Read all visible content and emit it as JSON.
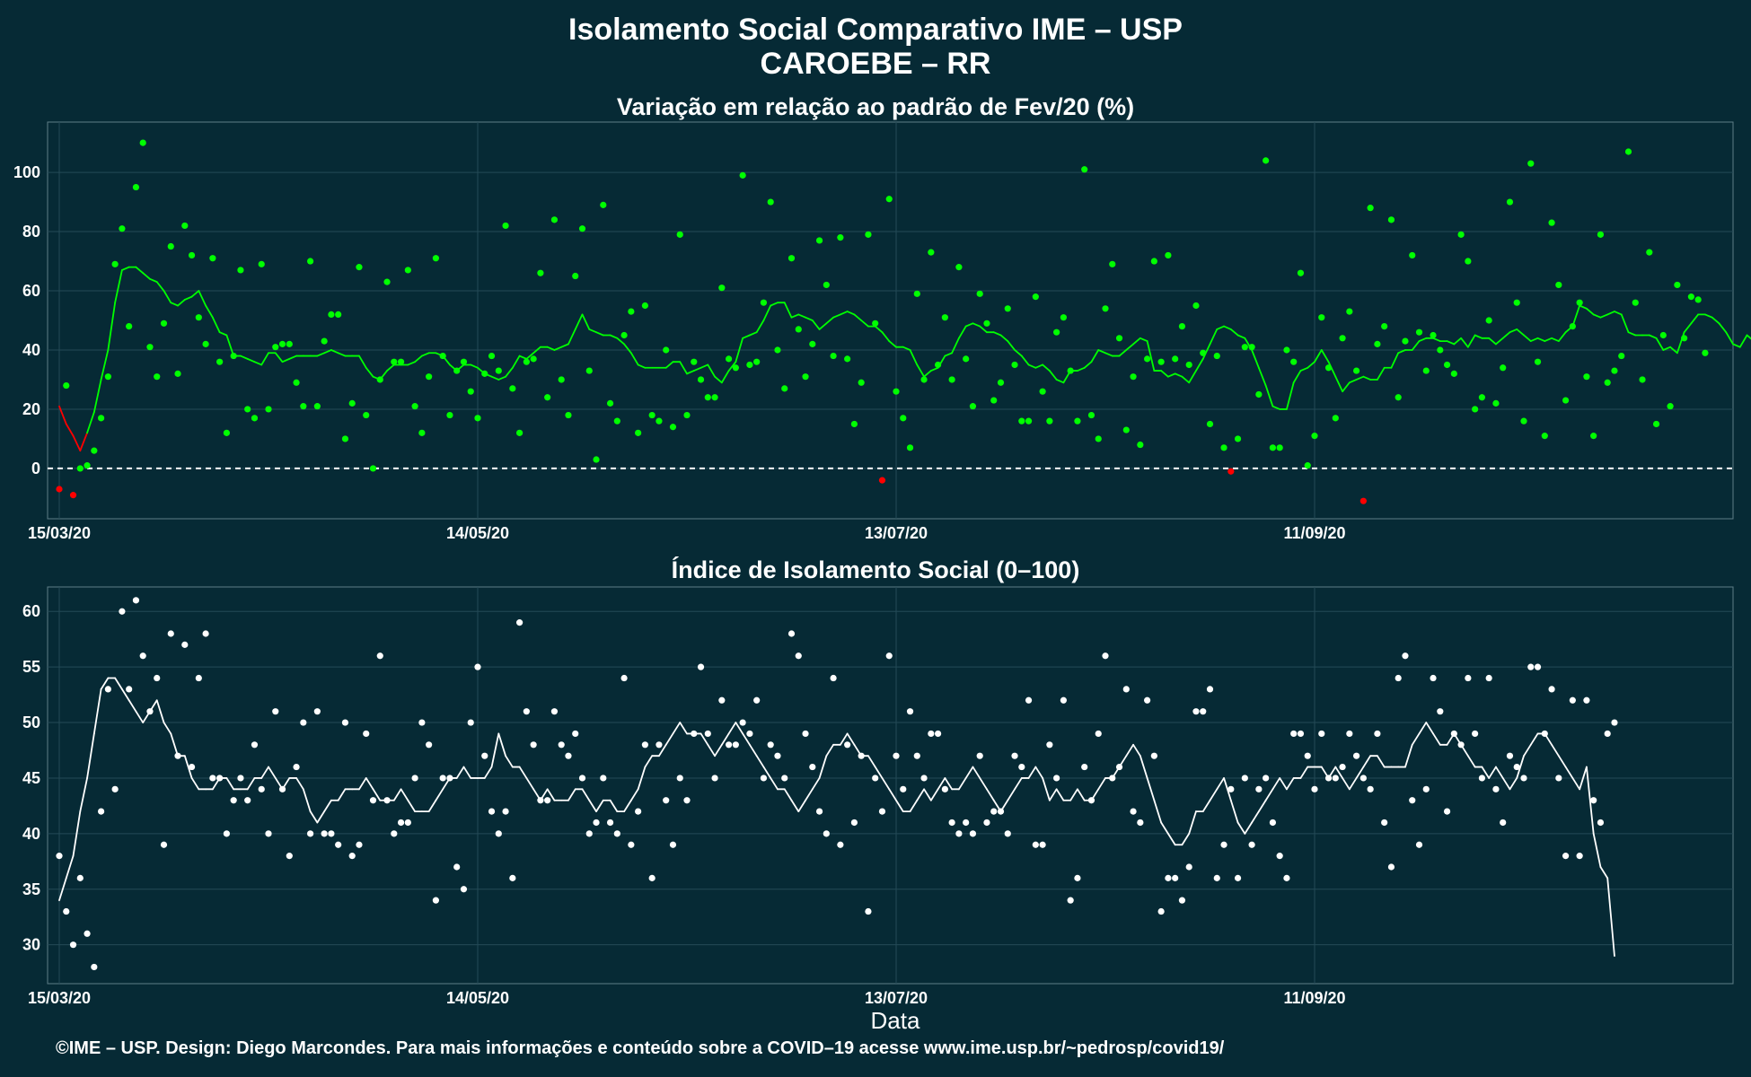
{
  "title_line1": "Isolamento Social Comparativo IME – USP",
  "title_line2": "CAROEBE – RR",
  "footer": "©IME – USP. Design: Diego Marcondes. Para mais informações e conteúdo sobre a COVID–19 acesse www.ime.usp.br/~pedrosp/covid19/",
  "x_axis_label": "Data",
  "colors": {
    "background": "#062a35",
    "positive": "#00ff00",
    "negative": "#ff0000",
    "index": "#ffffff",
    "grid": "#244a57"
  },
  "chart_data": [
    {
      "type": "scatter",
      "title": "Variação em relação ao padrão de Fev/20 (%)",
      "xlabel": "Data",
      "ylabel": "",
      "x_start": "2020-03-15",
      "x_ticks": [
        "15/03/20",
        "14/05/20",
        "13/07/20",
        "11/09/20"
      ],
      "y_ticks": [
        0,
        20,
        40,
        60,
        80,
        100
      ],
      "ylim": [
        -17,
        117
      ],
      "reference_line": 0,
      "series": [
        {
          "values": [
            -7,
            28,
            -9,
            0,
            1,
            6,
            17,
            31,
            69,
            81,
            48,
            95,
            110,
            41,
            31,
            49,
            75,
            32,
            82,
            72,
            51,
            42,
            71,
            36,
            12,
            38,
            67,
            20,
            17,
            69,
            20,
            41,
            42,
            42,
            29,
            21,
            70,
            21,
            43,
            52,
            52,
            10,
            22,
            68,
            18,
            0,
            30,
            63,
            36,
            36,
            67,
            21,
            12,
            31,
            71,
            38,
            18,
            33,
            36,
            26,
            17,
            32,
            38,
            33,
            82,
            27,
            12,
            36,
            37,
            66,
            24,
            84,
            30,
            18,
            65,
            81,
            33,
            3,
            89,
            22,
            16,
            45,
            53,
            12,
            55,
            18,
            16,
            40,
            14,
            79,
            18,
            36,
            30,
            24,
            24,
            61,
            37,
            34,
            99,
            35,
            36,
            56,
            90,
            40,
            27,
            71,
            47,
            31,
            42,
            77,
            62,
            38,
            78,
            37,
            15,
            29,
            79,
            49,
            -4,
            91,
            26,
            17,
            7,
            59,
            30,
            73,
            35,
            51,
            30,
            68,
            37,
            21,
            59,
            49,
            23,
            29,
            54,
            35,
            16,
            16,
            58,
            26,
            16,
            46,
            51,
            33,
            16,
            101,
            18,
            10,
            54,
            69,
            44,
            13,
            31,
            8,
            37,
            70,
            36,
            72,
            37,
            48,
            35,
            55,
            39,
            15,
            38,
            7,
            -1,
            10,
            41,
            41,
            25,
            104,
            7,
            7,
            40,
            36,
            66,
            1,
            11,
            51,
            34,
            17,
            44,
            53,
            33,
            -11,
            88,
            42,
            48,
            84,
            24,
            43,
            72,
            46,
            33,
            45,
            40,
            35,
            32,
            79,
            70,
            20,
            24,
            50,
            22,
            34,
            90,
            56,
            16,
            103,
            36,
            11,
            83,
            62,
            23,
            48,
            56,
            31,
            11,
            79,
            29,
            33,
            38,
            107,
            56,
            30,
            73,
            15,
            45,
            21,
            62,
            44,
            58,
            57,
            39
          ]
        },
        {
          "values": [
            21,
            15,
            11,
            6,
            12,
            19,
            30,
            40,
            56,
            67,
            68,
            68,
            66,
            64,
            63,
            60,
            56,
            55,
            57,
            58,
            60,
            55,
            51,
            46,
            45,
            38,
            38,
            37,
            36,
            35,
            39,
            39,
            36,
            37,
            38,
            38,
            38,
            38,
            39,
            40,
            39,
            38,
            38,
            38,
            34,
            31,
            30,
            33,
            35,
            35,
            35,
            36,
            38,
            39,
            39,
            38,
            35,
            33,
            35,
            35,
            34,
            32,
            31,
            30,
            31,
            34,
            38,
            37,
            39,
            41,
            41,
            40,
            41,
            42,
            47,
            52,
            47,
            46,
            45,
            45,
            44,
            42,
            39,
            35,
            34,
            34,
            34,
            34,
            36,
            36,
            32,
            33,
            34,
            35,
            31,
            29,
            33,
            36,
            44,
            45,
            46,
            50,
            55,
            56,
            56,
            51,
            52,
            51,
            50,
            47,
            49,
            51,
            52,
            53,
            52,
            50,
            48,
            48,
            46,
            43,
            41,
            41,
            40,
            35,
            31,
            33,
            34,
            38,
            39,
            44,
            48,
            49,
            48,
            46,
            46,
            45,
            43,
            40,
            38,
            35,
            34,
            35,
            33,
            30,
            29,
            33,
            33,
            34,
            36,
            40,
            39,
            38,
            38,
            40,
            42,
            44,
            43,
            33,
            33,
            31,
            32,
            31,
            29,
            33,
            37,
            42,
            47,
            48,
            47,
            45,
            44,
            40,
            34,
            28,
            21,
            20,
            20,
            29,
            33,
            34,
            36,
            40,
            36,
            31,
            26,
            29,
            30,
            31,
            30,
            30,
            34,
            34,
            39,
            40,
            40,
            43,
            44,
            44,
            43,
            43,
            42,
            44,
            41,
            45,
            44,
            44,
            42,
            44,
            46,
            47,
            45,
            43,
            44,
            43,
            44,
            43,
            46,
            48,
            55,
            54,
            52,
            51,
            52,
            53,
            52,
            46,
            45,
            45,
            45,
            44,
            40,
            41,
            39,
            46,
            49,
            52,
            52,
            51,
            49,
            46,
            42,
            41,
            45,
            43,
            46
          ]
        }
      ]
    },
    {
      "type": "scatter",
      "title": "Índice de Isolamento Social (0–100)",
      "xlabel": "Data",
      "ylabel": "",
      "x_start": "2020-03-15",
      "x_ticks": [
        "15/03/20",
        "14/05/20",
        "13/07/20",
        "11/09/20"
      ],
      "y_ticks": [
        30,
        35,
        40,
        45,
        50,
        55,
        60
      ],
      "ylim": [
        26.5,
        62.2
      ],
      "series": [
        {
          "values": [
            38,
            33,
            30,
            36,
            31,
            28,
            42,
            53,
            44,
            60,
            53,
            61,
            56,
            51,
            54,
            39,
            58,
            47,
            57,
            46,
            54,
            58,
            45,
            45,
            40,
            43,
            45,
            43,
            48,
            44,
            40,
            51,
            44,
            38,
            46,
            50,
            40,
            51,
            40,
            40,
            39,
            50,
            38,
            39,
            49,
            43,
            56,
            43,
            40,
            41,
            41,
            45,
            50,
            48,
            34,
            45,
            45,
            37,
            35,
            50,
            55,
            47,
            42,
            40,
            42,
            36,
            59,
            51,
            48,
            43,
            43,
            51,
            48,
            47,
            49,
            45,
            40,
            41,
            45,
            41,
            40,
            54,
            39,
            42,
            48,
            36,
            48,
            43,
            39,
            45,
            43,
            49,
            55,
            49,
            45,
            52,
            48,
            48,
            50,
            49,
            52,
            45,
            48,
            47,
            45,
            58,
            56,
            49,
            46,
            42,
            40,
            54,
            39,
            48,
            41,
            47,
            33,
            45,
            42,
            56,
            47,
            44,
            51,
            47,
            45,
            49,
            49,
            44,
            41,
            40,
            41,
            40,
            47,
            41,
            42,
            42,
            40,
            47,
            46,
            52,
            39,
            39,
            48,
            45,
            52,
            34,
            36,
            46,
            43,
            49,
            56,
            45,
            46,
            53,
            42,
            41,
            52,
            47,
            33,
            36,
            36,
            34,
            37,
            51,
            51,
            53,
            36,
            39,
            44,
            36,
            45,
            39,
            44,
            45,
            41,
            38,
            36,
            49,
            49,
            47,
            44,
            49,
            45,
            45,
            46,
            49,
            47,
            45,
            44,
            49,
            41,
            37,
            54,
            56,
            43,
            39,
            44,
            54,
            51,
            42,
            49,
            48,
            54,
            49,
            45,
            54,
            44,
            41,
            47,
            46,
            45,
            55,
            55,
            49,
            53,
            45,
            38,
            52,
            38,
            52,
            43,
            41,
            49,
            50
          ]
        },
        {
          "values": [
            34,
            36,
            38,
            42,
            45,
            49,
            53,
            54,
            54,
            53,
            52,
            51,
            50,
            51,
            52,
            50,
            49,
            47,
            47,
            45,
            44,
            44,
            44,
            45,
            45,
            44,
            44,
            44,
            45,
            45,
            46,
            45,
            44,
            45,
            45,
            44,
            42,
            41,
            42,
            43,
            43,
            44,
            44,
            44,
            45,
            44,
            43,
            43,
            43,
            44,
            43,
            42,
            42,
            42,
            43,
            44,
            45,
            45,
            46,
            45,
            45,
            45,
            46,
            49,
            47,
            46,
            46,
            45,
            44,
            43,
            44,
            43,
            43,
            43,
            44,
            44,
            43,
            42,
            43,
            43,
            42,
            42,
            43,
            44,
            46,
            47,
            47,
            48,
            49,
            50,
            49,
            49,
            49,
            48,
            47,
            48,
            49,
            50,
            49,
            48,
            47,
            46,
            45,
            44,
            44,
            43,
            42,
            43,
            44,
            45,
            47,
            48,
            48,
            49,
            48,
            47,
            47,
            46,
            45,
            44,
            43,
            42,
            42,
            43,
            44,
            43,
            44,
            45,
            44,
            44,
            45,
            46,
            45,
            44,
            43,
            42,
            43,
            44,
            45,
            45,
            46,
            45,
            43,
            44,
            43,
            43,
            44,
            43,
            43,
            44,
            45,
            45,
            46,
            47,
            48,
            47,
            45,
            43,
            41,
            40,
            39,
            39,
            40,
            42,
            42,
            43,
            44,
            45,
            43,
            41,
            40,
            41,
            42,
            43,
            44,
            45,
            44,
            45,
            45,
            46,
            46,
            46,
            45,
            46,
            45,
            44,
            45,
            46,
            47,
            47,
            46,
            46,
            46,
            46,
            48,
            49,
            50,
            49,
            48,
            48,
            49,
            48,
            47,
            46,
            46,
            45,
            46,
            45,
            44,
            45,
            47,
            48,
            49,
            49,
            48,
            47,
            46,
            45,
            44,
            46,
            40,
            37,
            36,
            29
          ]
        }
      ]
    }
  ]
}
